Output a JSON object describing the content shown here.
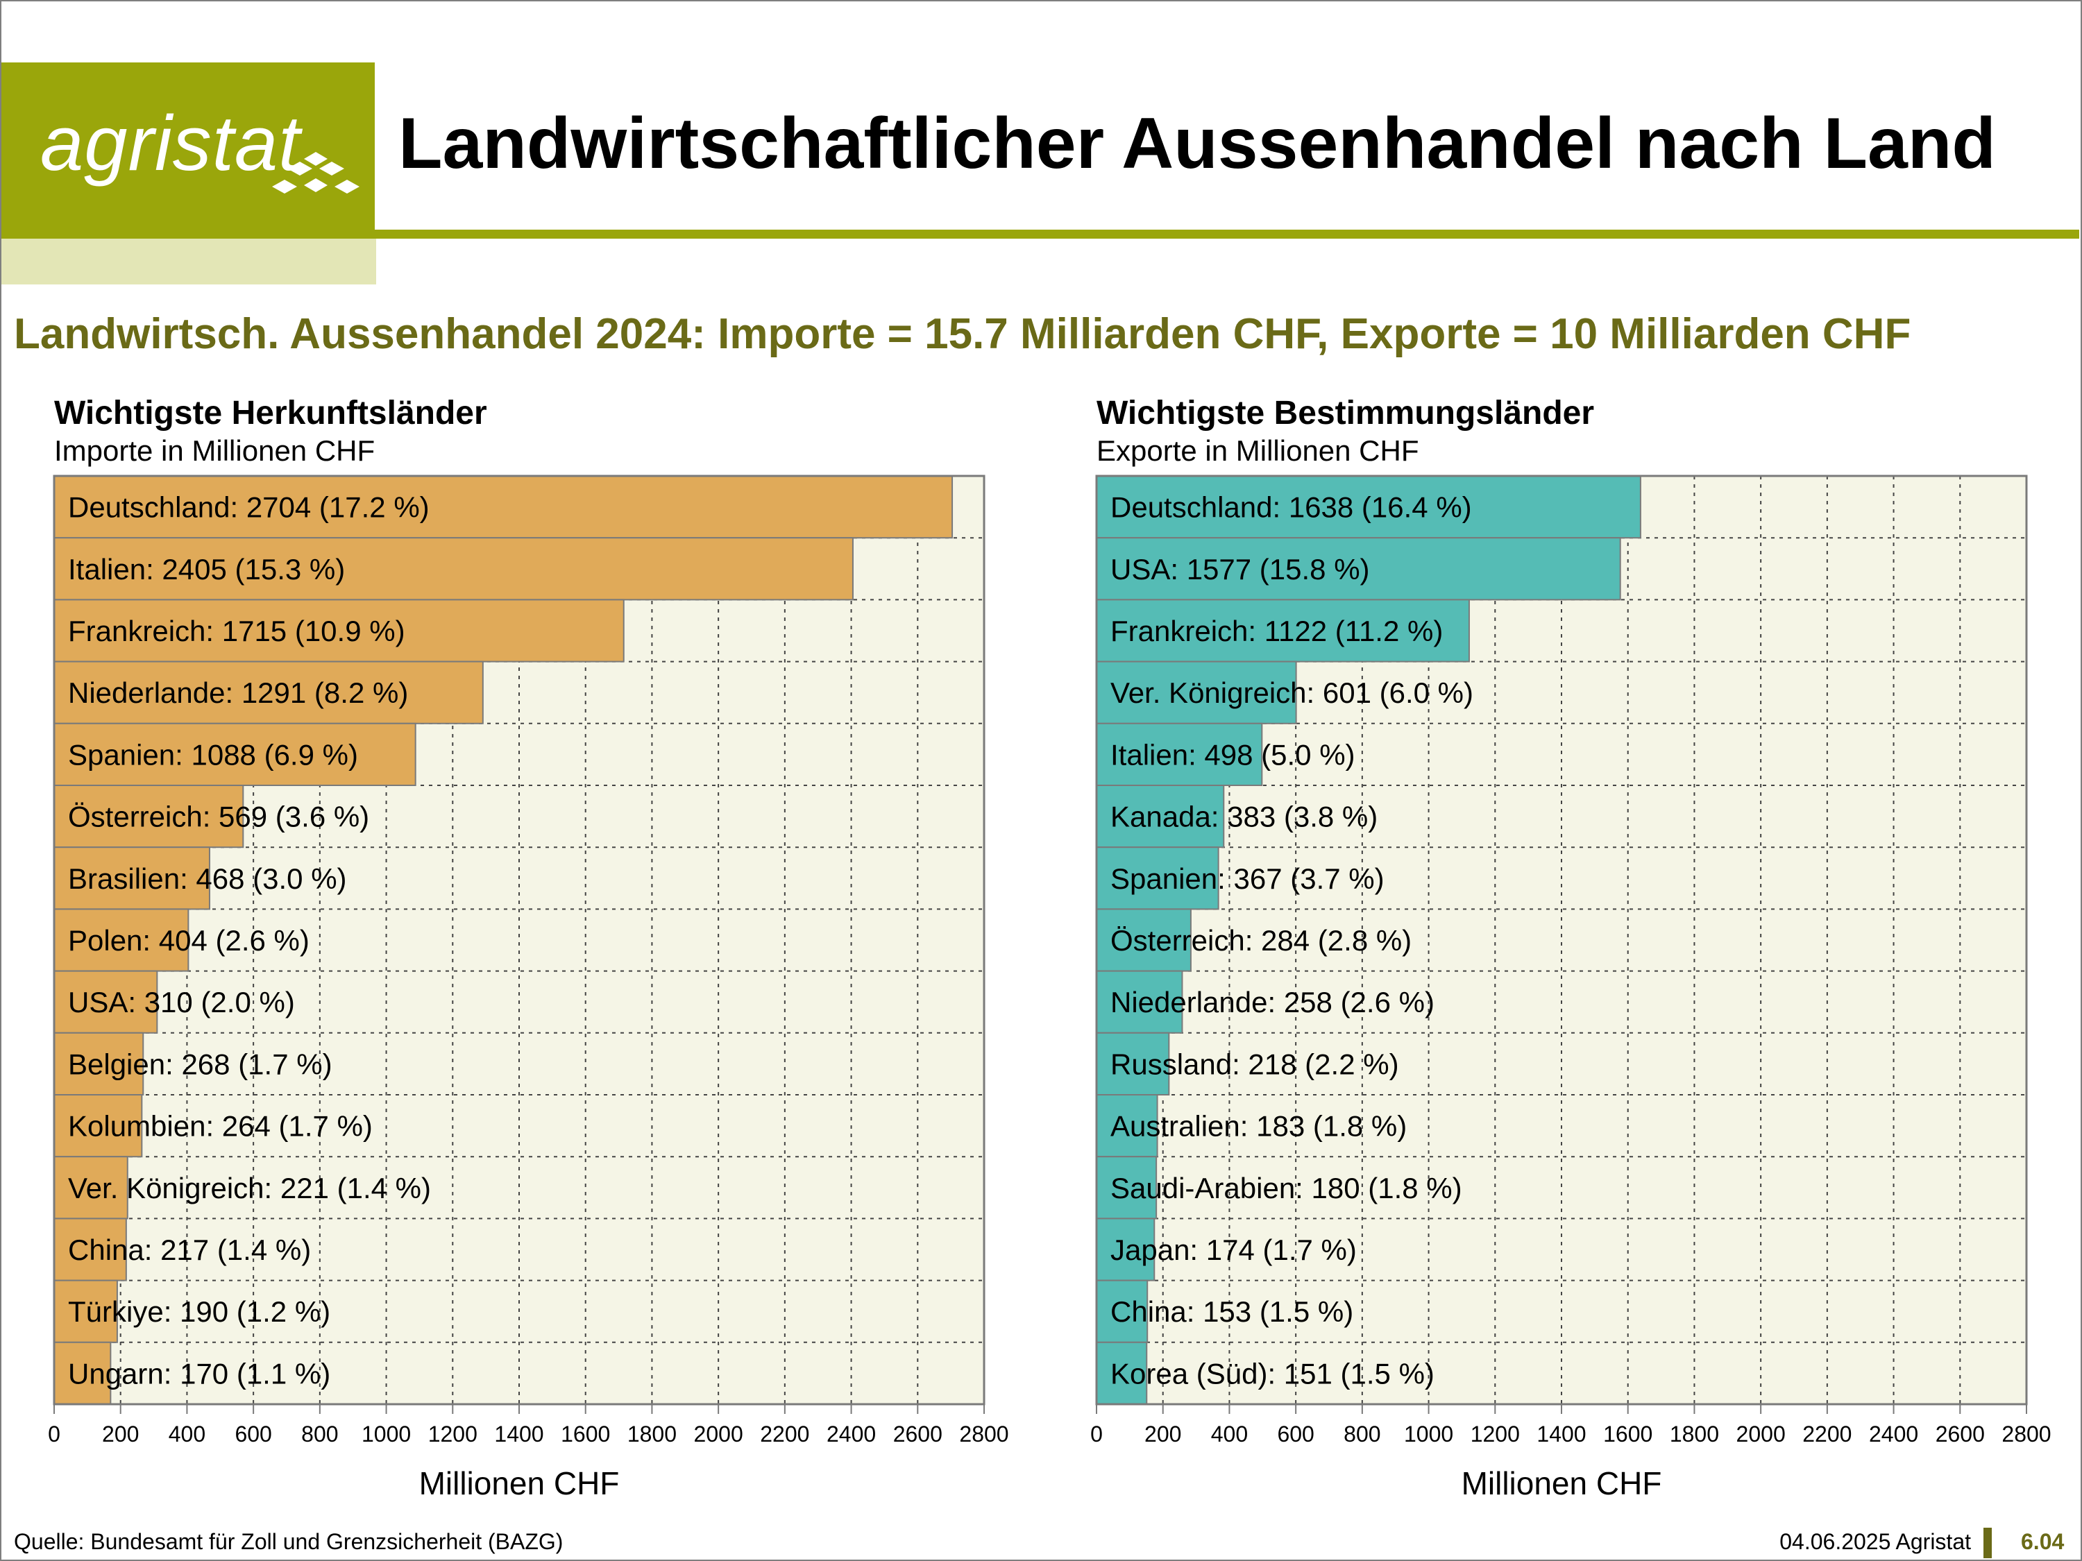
{
  "header": {
    "logo_text": "agristat",
    "title": "Landwirtschaftlicher Aussenhandel nach Land"
  },
  "subtitle": "Landwirtsch. Aussenhandel 2024: Importe = 15.7 Milliarden CHF, Exporte = 10 Milliarden CHF",
  "panels": {
    "imports": {
      "title": "Wichtigste Herkunftsländer",
      "subtitle": "Importe in Millionen CHF"
    },
    "exports": {
      "title": "Wichtigste Bestimmungsländer",
      "subtitle": "Exporte in Millionen CHF"
    }
  },
  "colors": {
    "imports_bar": "#e0aa59",
    "exports_bar": "#55bcb5",
    "plot_bg": "#f5f5e6",
    "accent": "#9aa60b",
    "subtitle": "#6a6a17"
  },
  "chart_data": [
    {
      "type": "bar",
      "orientation": "horizontal",
      "title": "Wichtigste Herkunftsländer",
      "subtitle": "Importe in Millionen CHF",
      "xlabel": "Millionen CHF",
      "xlim": [
        0,
        2800
      ],
      "xticks": [
        "0",
        "200",
        "400",
        "600",
        "800",
        "1000",
        "1200",
        "1400",
        "1600",
        "1800",
        "2000",
        "2200",
        "2400",
        "2600",
        "2800"
      ],
      "grid": true,
      "color": "#e0aa59",
      "categories": [
        "Deutschland",
        "Italien",
        "Frankreich",
        "Niederlande",
        "Spanien",
        "Österreich",
        "Brasilien",
        "Polen",
        "USA",
        "Belgien",
        "Kolumbien",
        "Ver. Königreich",
        "China",
        "Türkiye",
        "Ungarn"
      ],
      "values": [
        2704,
        2405,
        1715,
        1291,
        1088,
        569,
        468,
        404,
        310,
        268,
        264,
        221,
        217,
        190,
        170
      ],
      "labels": [
        "Deutschland: 2704 (17.2 %)",
        "Italien: 2405 (15.3 %)",
        "Frankreich: 1715 (10.9 %)",
        "Niederlande: 1291 (8.2 %)",
        "Spanien: 1088 (6.9 %)",
        "Österreich: 569 (3.6 %)",
        "Brasilien: 468 (3.0 %)",
        "Polen: 404 (2.6 %)",
        "USA: 310 (2.0 %)",
        "Belgien: 268 (1.7 %)",
        "Kolumbien: 264 (1.7 %)",
        "Ver. Königreich: 221 (1.4 %)",
        "China: 217 (1.4 %)",
        "Türkiye: 190 (1.2 %)",
        "Ungarn: 170 (1.1 %)"
      ]
    },
    {
      "type": "bar",
      "orientation": "horizontal",
      "title": "Wichtigste Bestimmungsländer",
      "subtitle": "Exporte in Millionen CHF",
      "xlabel": "Millionen CHF",
      "xlim": [
        0,
        2800
      ],
      "xticks": [
        "0",
        "200",
        "400",
        "600",
        "800",
        "1000",
        "1200",
        "1400",
        "1600",
        "1800",
        "2000",
        "2200",
        "2400",
        "2600",
        "2800"
      ],
      "grid": true,
      "color": "#55bcb5",
      "categories": [
        "Deutschland",
        "USA",
        "Frankreich",
        "Ver. Königreich",
        "Italien",
        "Kanada",
        "Spanien",
        "Österreich",
        "Niederlande",
        "Russland",
        "Australien",
        "Saudi-Arabien",
        "Japan",
        "China",
        "Korea (Süd)"
      ],
      "values": [
        1638,
        1577,
        1122,
        601,
        498,
        383,
        367,
        284,
        258,
        218,
        183,
        180,
        174,
        153,
        151
      ],
      "labels": [
        "Deutschland: 1638 (16.4 %)",
        "USA: 1577 (15.8 %)",
        "Frankreich: 1122 (11.2 %)",
        "Ver. Königreich: 601 (6.0 %)",
        "Italien: 498 (5.0 %)",
        "Kanada: 383 (3.8 %)",
        "Spanien: 367 (3.7 %)",
        "Österreich: 284 (2.8 %)",
        "Niederlande: 258 (2.6 %)",
        "Russland: 218 (2.2 %)",
        "Australien: 183 (1.8 %)",
        "Saudi-Arabien: 180 (1.8 %)",
        "Japan: 174 (1.7 %)",
        "China: 153 (1.5 %)",
        "Korea (Süd): 151 (1.5 %)"
      ]
    }
  ],
  "footer": {
    "source": "Quelle: Bundesamt für Zoll und Grenzsicherheit (BAZG)",
    "date": "04.06.2025 Agristat",
    "page": "6.04"
  }
}
